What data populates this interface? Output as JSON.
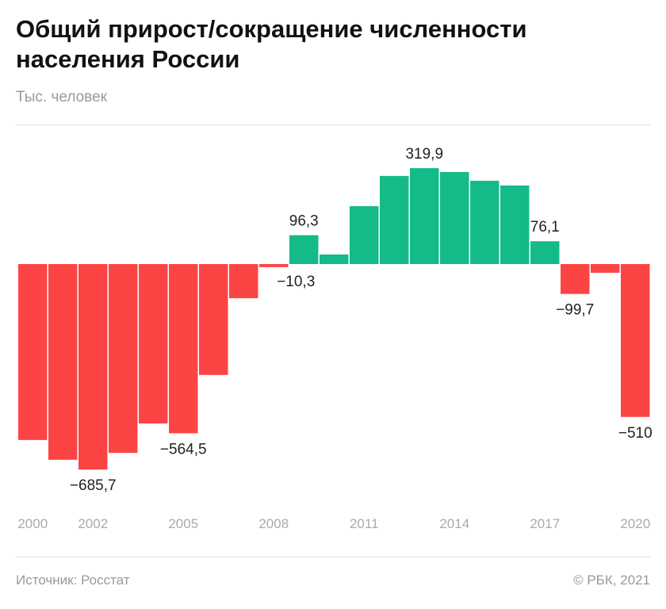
{
  "title": "Общий прирост/сокращение численности населения России",
  "subtitle": "Тыс. человек",
  "source": "Источник: Росстат",
  "copyright": "© РБК, 2021",
  "colors": {
    "positive": "#14bb89",
    "negative": "#fd4444"
  },
  "chart_data": {
    "type": "bar",
    "title": "Общий прирост/сокращение численности населения России",
    "ylabel": "Тыс. человек",
    "categories": [
      2000,
      2001,
      2002,
      2003,
      2004,
      2005,
      2006,
      2007,
      2008,
      2009,
      2010,
      2011,
      2012,
      2013,
      2014,
      2015,
      2016,
      2017,
      2018,
      2019,
      2020
    ],
    "values": [
      -587,
      -653,
      -685.7,
      -630,
      -532,
      -564.5,
      -370,
      -114,
      -10.3,
      96.3,
      32,
      193,
      294,
      319.9,
      307,
      278,
      262,
      76.1,
      -99.7,
      -29,
      -510
    ],
    "tick_labels": [
      "2000",
      "2002",
      "2005",
      "2008",
      "2011",
      "2014",
      "2017",
      "2020"
    ],
    "data_labels": {
      "2002": "−685,7",
      "2005": "−564,5",
      "2008": "−10,3",
      "2009": "96,3",
      "2013": "319,9",
      "2017": "76,1",
      "2018": "−99,7",
      "2020": "−510"
    },
    "grid": false,
    "legend": "none"
  }
}
